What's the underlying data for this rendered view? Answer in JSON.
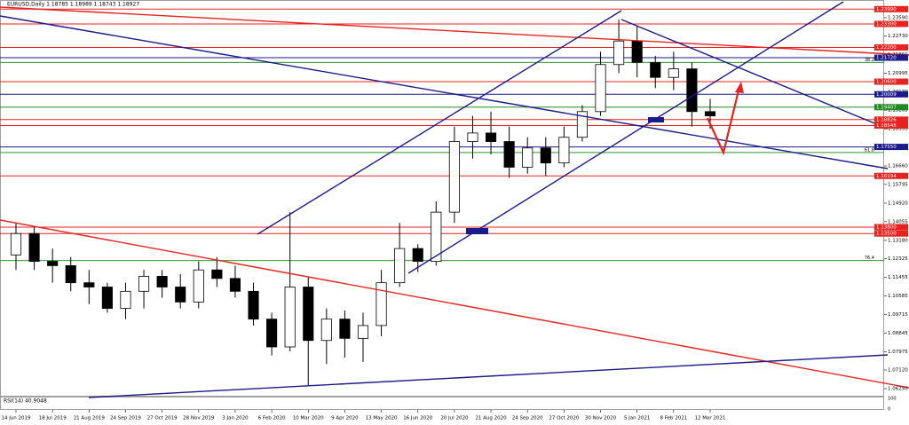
{
  "chart_data": {
    "type": "candlestick",
    "title": "EURUSD,Daily 1.18785 1.18989 1.18743 1.18927",
    "categories": [
      "14 Jun 2019",
      null,
      "18 Jul 2019",
      null,
      "21 Aug 2019",
      null,
      "24 Sep 2019",
      null,
      "27 Oct 2019",
      null,
      "28 Nov 2019",
      null,
      "3 Jan 2020",
      null,
      "6 Feb 2020",
      null,
      "10 Mar 2020",
      null,
      "9 Apr 2020",
      null,
      "13 May 2020",
      null,
      "16 Jun 2020",
      null,
      "20 Jul 2020",
      null,
      "21 Aug 2020",
      null,
      "24 Sep 2020",
      null,
      "27 Oct 2020",
      null,
      "30 Nov 2020",
      null,
      "5 Jan 2021",
      null,
      "8 Feb 2021",
      null,
      "12 Mar 2021"
    ],
    "open": [
      1.125,
      1.135,
      1.122,
      1.12,
      1.112,
      1.11,
      1.1,
      1.108,
      1.115,
      1.11,
      1.103,
      1.118,
      1.114,
      1.108,
      1.095,
      1.082,
      1.11,
      1.085,
      1.095,
      1.086,
      1.092,
      1.112,
      1.128,
      1.122,
      1.145,
      1.178,
      1.182,
      1.178,
      1.166,
      1.175,
      1.168,
      1.18,
      1.192,
      1.214,
      1.225,
      1.215,
      1.208,
      1.212,
      1.192
    ],
    "high": [
      1.14,
      1.138,
      1.128,
      1.124,
      1.118,
      1.112,
      1.112,
      1.118,
      1.118,
      1.116,
      1.122,
      1.124,
      1.12,
      1.112,
      1.098,
      1.145,
      1.115,
      1.1,
      1.099,
      1.098,
      1.118,
      1.14,
      1.13,
      1.15,
      1.185,
      1.19,
      1.192,
      1.185,
      1.18,
      1.18,
      1.185,
      1.195,
      1.22,
      1.235,
      1.232,
      1.218,
      1.22,
      1.215,
      1.198
    ],
    "low": [
      1.118,
      1.118,
      1.112,
      1.108,
      1.102,
      1.098,
      1.095,
      1.1,
      1.105,
      1.1,
      1.1,
      1.11,
      1.105,
      1.092,
      1.078,
      1.08,
      1.064,
      1.074,
      1.077,
      1.075,
      1.087,
      1.11,
      1.117,
      1.12,
      1.14,
      1.17,
      1.172,
      1.161,
      1.163,
      1.162,
      1.166,
      1.178,
      1.19,
      1.21,
      1.208,
      1.203,
      1.202,
      1.185,
      1.184
    ],
    "close": [
      1.135,
      1.122,
      1.12,
      1.112,
      1.11,
      1.1,
      1.108,
      1.115,
      1.11,
      1.103,
      1.118,
      1.114,
      1.108,
      1.095,
      1.082,
      1.11,
      1.085,
      1.095,
      1.086,
      1.092,
      1.112,
      1.128,
      1.122,
      1.145,
      1.178,
      1.182,
      1.178,
      1.166,
      1.175,
      1.168,
      1.18,
      1.192,
      1.214,
      1.225,
      1.215,
      1.208,
      1.212,
      1.192,
      1.19
    ],
    "ylim": [
      1.0596,
      1.2421
    ],
    "yticks": [
      {
        "value": 1.2359,
        "label": "1.23590"
      },
      {
        "value": 1.2273,
        "label": "1.22730"
      },
      {
        "value": 1.2186,
        "label": "1.21860"
      },
      1.20995,
      {
        "value": 1.2013,
        "label": "1.20130"
      },
      1.19265,
      1.18395,
      {
        "value": 1.1753,
        "label": "1.17530"
      },
      {
        "value": 1.1666,
        "label": "1.16660"
      },
      1.15795,
      {
        "value": 1.1492,
        "label": "1.14920"
      },
      1.14055,
      {
        "value": 1.1318,
        "label": "1.13180"
      },
      1.12325,
      1.11455,
      1.10585,
      1.09715,
      1.08845,
      1.07975,
      {
        "value": 1.0712,
        "label": "1.07120"
      },
      {
        "value": 1.0625,
        "label": "1.06250"
      }
    ],
    "levels": {
      "values": [
        1.2399,
        1.233,
        1.222,
        1.2172,
        1.206,
        1.20009,
        1.19407,
        1.18826,
        1.18548,
        1.1755,
        1.16194,
        1.138,
        1.135
      ],
      "value_labels": [
        "1.23990",
        "1.23300",
        "1.22200",
        "1.21720",
        "1.20600",
        "1.20009",
        "1.19407",
        "1.18826",
        "1.18548",
        "1.17550",
        "1.16194",
        "1.13800",
        "1.13500"
      ],
      "colors": [
        "#e8231f",
        "#e8231f",
        "#e8231f",
        "#1a1a8c",
        "#e8231f",
        "#1a1a8c",
        "#1f8a1f",
        "#e8231f",
        "#e8231f",
        "#1a1a8c",
        "#e8231f",
        "#e8231f",
        "#e8231f"
      ]
    },
    "fib_levels": {
      "values": [
        1.215,
        1.1729,
        1.1224
      ],
      "value_labels": [
        "38.2",
        "61.8",
        "76.4"
      ],
      "color": "#2e9a2e"
    },
    "rsi": {
      "label": "RSI(14) 40.9048",
      "ylim": [
        0,
        100
      ],
      "yticks": [
        100,
        0
      ]
    }
  }
}
